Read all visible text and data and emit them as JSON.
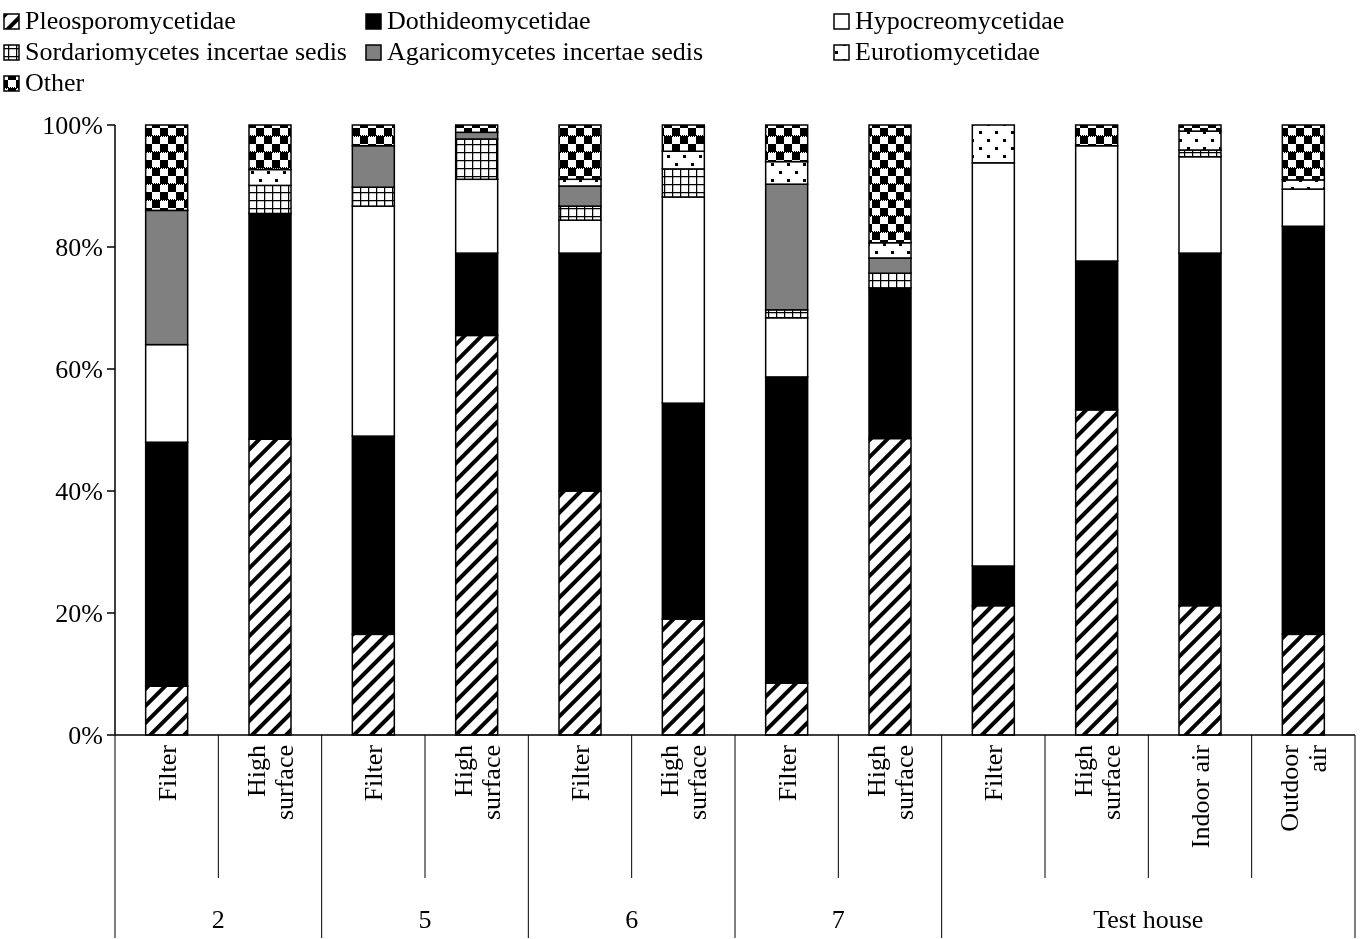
{
  "chart_data": {
    "type": "bar",
    "stacked": true,
    "legend": "top",
    "categories": [
      "Filter",
      "High surface",
      "Filter",
      "High surface",
      "Filter",
      "High surface",
      "Filter",
      "High surface",
      "Filter",
      "High surface",
      "Indoor air",
      "Outdoor air"
    ],
    "annotations": [
      "2",
      "5",
      "6",
      "7",
      "Test house"
    ],
    "ylim": [
      0,
      100
    ],
    "yticks": [
      {
        "value": 0,
        "label": "0%"
      },
      {
        "value": 20,
        "label": "20%"
      },
      {
        "value": 40,
        "label": "40%"
      },
      {
        "value": 60,
        "label": "60%"
      },
      {
        "value": 80,
        "label": "80%"
      },
      {
        "value": 100,
        "label": "100%"
      }
    ],
    "series": [
      {
        "name": "Pleosporomycetidae",
        "color": "#000000",
        "values": [
          8,
          48.5,
          16.5,
          65.5,
          40,
          19,
          8.5,
          48.6,
          21.2,
          53.3,
          21.2,
          16.5
        ]
      },
      {
        "name": "Dothideomycetidae",
        "color": "#000000",
        "values": [
          40,
          37,
          32.5,
          13.5,
          39,
          35.4,
          50.2,
          24.7,
          6.5,
          24.4,
          57.8,
          66.9
        ]
      },
      {
        "name": "Hypocreomycetidae",
        "color": "#ffffff",
        "values": [
          16,
          0,
          37.7,
          12.1,
          5.4,
          33.8,
          9.7,
          0,
          66.1,
          18.9,
          15.8,
          6.1
        ]
      },
      {
        "name": "Sordariomycetes incertae sedis",
        "color": "#000000",
        "values": [
          0,
          4.6,
          3.1,
          6.6,
          2.3,
          4.6,
          1.3,
          2.4,
          0,
          0,
          1.1,
          0
        ]
      },
      {
        "name": "Agaricomycetes incertae sedis",
        "color": "#808080",
        "values": [
          22,
          0,
          6.8,
          1.1,
          3.3,
          0,
          20.6,
          2.5,
          0,
          0,
          0,
          0
        ]
      },
      {
        "name": "Eurotiomycetidae",
        "color": "#000000",
        "values": [
          0,
          2.6,
          0,
          0,
          1.1,
          2.9,
          3.7,
          2.5,
          6.2,
          0,
          3.1,
          1.5
        ]
      },
      {
        "name": "Other",
        "color": "#000000",
        "values": [
          14,
          7.3,
          3.4,
          1.2,
          8.9,
          4.3,
          6,
          19.3,
          0,
          3.4,
          1,
          9
        ]
      }
    ]
  }
}
